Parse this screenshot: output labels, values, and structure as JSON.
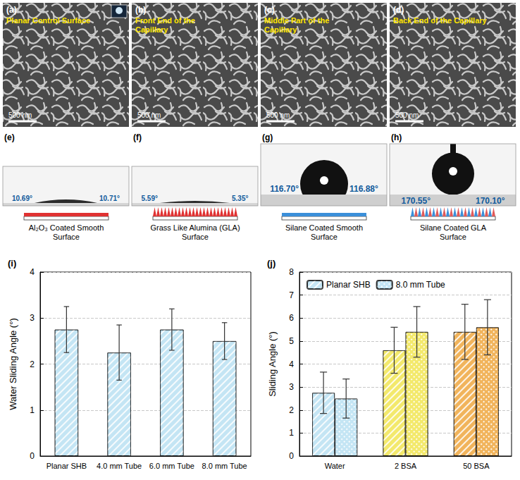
{
  "panels_top": [
    {
      "letter": "(a)",
      "title": "Planar Control Surface",
      "scale_bar": "500 nm"
    },
    {
      "letter": "(b)",
      "title": "Front End of the Capillary",
      "scale_bar": "500 nm"
    },
    {
      "letter": "(c)",
      "title": "Middle Part of the Capillary",
      "scale_bar": "500 nm"
    },
    {
      "letter": "(d)",
      "title": "Back End of the Capillary",
      "scale_bar": "500 nm"
    }
  ],
  "panels_middle": [
    {
      "letter": "(e)",
      "caption": "Al₂O₃ Coated Smooth Surface",
      "angle_left": "10.69°",
      "angle_right": "10.71°"
    },
    {
      "letter": "(f)",
      "caption": "Grass Like Alumina (GLA) Surface",
      "angle_left": "5.59°",
      "angle_right": "5.35°"
    },
    {
      "letter": "(g)",
      "caption": "Silane Coated Smooth Surface",
      "angle_left": "116.70°",
      "angle_right": "116.88°"
    },
    {
      "letter": "(h)",
      "caption": "Silane Coated GLA Surface",
      "angle_left": "170.55°",
      "angle_right": "170.10°"
    }
  ],
  "chart_data": [
    {
      "type": "bar",
      "panel": "(i)",
      "categories": [
        "Planar SHB",
        "4.0 mm Tube",
        "6.0 mm Tube",
        "8.0 mm Tube"
      ],
      "values": [
        2.75,
        2.25,
        2.75,
        2.5
      ],
      "errors": [
        0.5,
        0.6,
        0.45,
        0.4
      ],
      "color": "#c4e5f4",
      "y_label": "Water Sliding Angle (°)",
      "ylim": [
        0,
        4
      ],
      "yticks": [
        0,
        1,
        2,
        3,
        4
      ],
      "grid": true
    },
    {
      "type": "bar",
      "panel": "(j)",
      "categories": [
        "Water",
        "2 BSA",
        "50 BSA"
      ],
      "colors": [
        "#c4e5f4",
        "#f3e96c",
        "#f1b45c"
      ],
      "y_label": "Sliding Angle (°)",
      "ylim": [
        0,
        8
      ],
      "yticks": [
        0,
        1,
        2,
        3,
        4,
        5,
        6,
        7,
        8
      ],
      "grid": true,
      "legend": "upper left",
      "series": [
        {
          "name": "Planar SHB",
          "color": "#c4e5f4",
          "values": [
            2.75,
            4.6,
            5.4
          ],
          "errors": [
            0.9,
            1.0,
            1.2
          ]
        },
        {
          "name": "8.0 mm Tube",
          "color": "#c4e5f4",
          "values": [
            2.5,
            5.4,
            5.6
          ],
          "errors": [
            0.85,
            1.1,
            1.2
          ]
        }
      ]
    }
  ]
}
